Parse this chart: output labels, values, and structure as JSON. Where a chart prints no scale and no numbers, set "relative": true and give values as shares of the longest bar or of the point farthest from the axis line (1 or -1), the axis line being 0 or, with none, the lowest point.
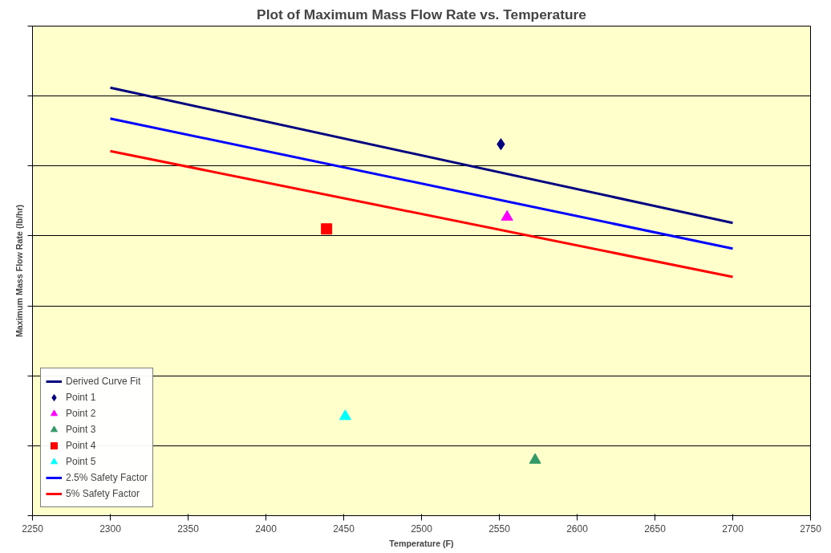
{
  "chart_data": {
    "type": "line",
    "title": "Plot of Maximum Mass Flow Rate vs. Temperature",
    "xlabel": "Temperature (F)",
    "ylabel": "Maximum Mass Flow Rate (lb/hr)",
    "relative": true,
    "xlim": [
      2250,
      2750
    ],
    "xticks": [
      2250,
      2300,
      2350,
      2400,
      2450,
      2500,
      2550,
      2600,
      2650,
      2700,
      2750
    ],
    "tick_labels": "x",
    "grid": "y",
    "legend": "bottom left",
    "series": [
      {
        "name": "Derived Curve Fit",
        "color": "#000080",
        "x": [
          2300,
          2700
        ],
        "values": [
          1.0,
          0.684
        ],
        "marker": "none"
      },
      {
        "name": "Point 1",
        "type": "scatter",
        "color": "#000080",
        "x": [
          2551
        ],
        "values": [
          0.868
        ],
        "marker": "diamond"
      },
      {
        "name": "Point 2",
        "type": "scatter",
        "color": "#ff00ff",
        "x": [
          2555
        ],
        "values": [
          0.698
        ],
        "marker": "triangle"
      },
      {
        "name": "Point 3",
        "type": "scatter",
        "color": "#339966",
        "x": [
          2573
        ],
        "values": [
          0.13
        ],
        "marker": "triangle"
      },
      {
        "name": "Point 4",
        "type": "scatter",
        "color": "#ff0000",
        "x": [
          2439
        ],
        "values": [
          0.67
        ],
        "marker": "square"
      },
      {
        "name": "Point 5",
        "type": "scatter",
        "color": "#00ffff",
        "x": [
          2451
        ],
        "values": [
          0.232
        ],
        "marker": "triangle"
      },
      {
        "name": "2.5% Safety Factor",
        "color": "#0000ff",
        "x": [
          2300,
          2700
        ],
        "values": [
          0.928,
          0.624
        ],
        "marker": "none"
      },
      {
        "name": "5% Safety Factor",
        "color": "#ff0000",
        "x": [
          2300,
          2700
        ],
        "values": [
          0.852,
          0.558
        ],
        "marker": "none"
      }
    ]
  }
}
